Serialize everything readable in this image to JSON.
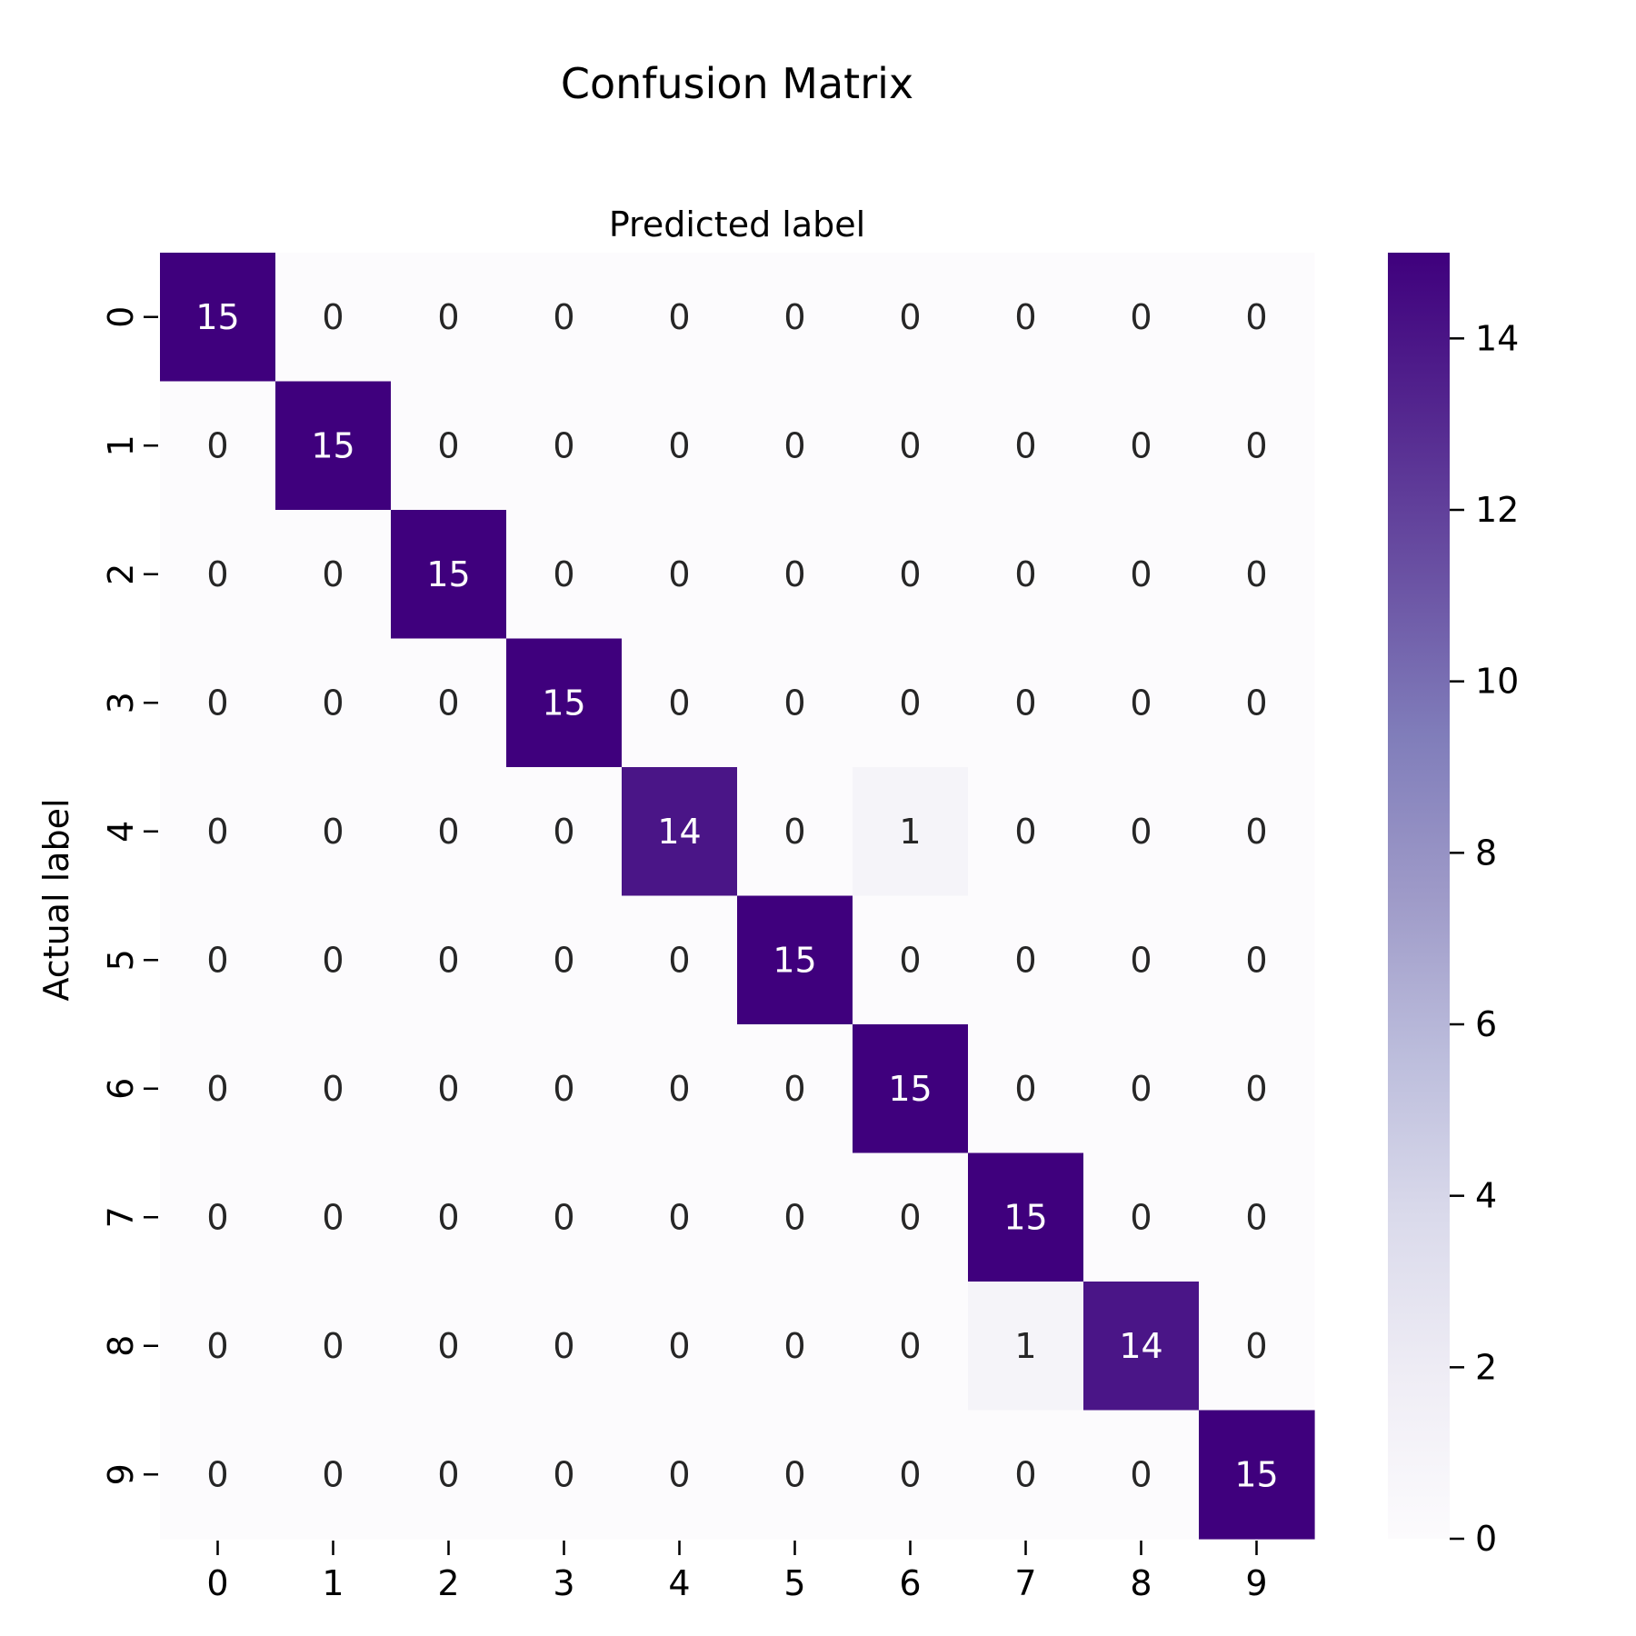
{
  "chart_data": {
    "type": "heatmap",
    "title": "Confusion Matrix",
    "xlabel": "Predicted label",
    "ylabel": "Actual label",
    "x_categories": [
      "0",
      "1",
      "2",
      "3",
      "4",
      "5",
      "6",
      "7",
      "8",
      "9"
    ],
    "y_categories": [
      "0",
      "1",
      "2",
      "3",
      "4",
      "5",
      "6",
      "7",
      "8",
      "9"
    ],
    "values": [
      [
        15,
        0,
        0,
        0,
        0,
        0,
        0,
        0,
        0,
        0
      ],
      [
        0,
        15,
        0,
        0,
        0,
        0,
        0,
        0,
        0,
        0
      ],
      [
        0,
        0,
        15,
        0,
        0,
        0,
        0,
        0,
        0,
        0
      ],
      [
        0,
        0,
        0,
        15,
        0,
        0,
        0,
        0,
        0,
        0
      ],
      [
        0,
        0,
        0,
        0,
        14,
        0,
        1,
        0,
        0,
        0
      ],
      [
        0,
        0,
        0,
        0,
        0,
        15,
        0,
        0,
        0,
        0
      ],
      [
        0,
        0,
        0,
        0,
        0,
        0,
        15,
        0,
        0,
        0
      ],
      [
        0,
        0,
        0,
        0,
        0,
        0,
        0,
        15,
        0,
        0
      ],
      [
        0,
        0,
        0,
        0,
        0,
        0,
        0,
        1,
        14,
        0
      ],
      [
        0,
        0,
        0,
        0,
        0,
        0,
        0,
        0,
        0,
        15
      ]
    ],
    "colorbar": {
      "range": [
        0,
        15
      ],
      "ticks": [
        "0",
        "2",
        "4",
        "6",
        "8",
        "10",
        "12",
        "14"
      ],
      "colormap": "Purples",
      "low_color": "#fcfbfd",
      "high_color": "#3f007d"
    },
    "x_axis_position": "top label, bottom ticks",
    "grid": false
  }
}
